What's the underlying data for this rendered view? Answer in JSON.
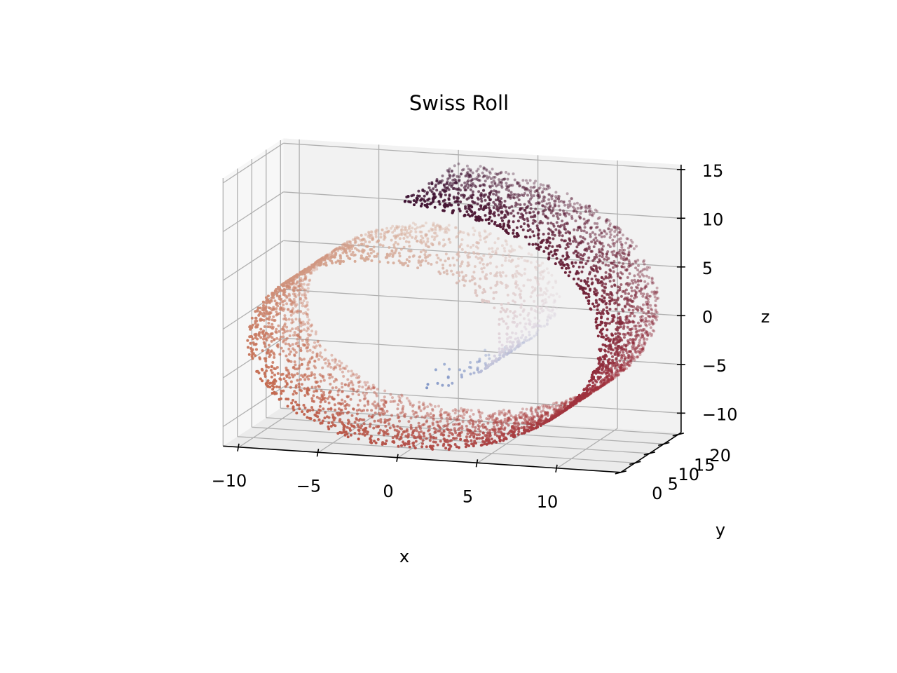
{
  "chart_data": {
    "type": "scatter",
    "projection": "3d",
    "title": "Swiss Roll",
    "xlabel": "x",
    "ylabel": "y",
    "zlabel": "z",
    "xlim": [
      -11,
      14
    ],
    "ylim": [
      0,
      21
    ],
    "zlim": [
      -12,
      15.5
    ],
    "x_ticks": [
      "−10",
      "−5",
      "0",
      "5",
      "10"
    ],
    "y_ticks": [
      "0",
      "5",
      "10",
      "15",
      "20"
    ],
    "z_ticks": [
      "−10",
      "−5",
      "0",
      "5",
      "10",
      "15"
    ],
    "grid": true,
    "colormap": "twilight_shifted",
    "color_by": "t",
    "series": [
      {
        "t_range": [
          4.71,
          14.14
        ],
        "x_formula": "t*cos(t)",
        "z_formula": "t*sin(t)",
        "y_range": [
          0,
          21
        ],
        "point_count": 5000,
        "marker_size": 2
      }
    ],
    "sample_points": [
      {
        "t": 4.71,
        "x": 0.0,
        "y": 10,
        "z": -4.7
      },
      {
        "t": 6.28,
        "x": 6.3,
        "y": 10,
        "z": 0.0
      },
      {
        "t": 7.85,
        "x": 0.0,
        "y": 10,
        "z": 7.9
      },
      {
        "t": 9.42,
        "x": -9.4,
        "y": 10,
        "z": 0.0
      },
      {
        "t": 10.99,
        "x": 0.0,
        "y": 10,
        "z": -11.0
      },
      {
        "t": 12.57,
        "x": 12.6,
        "y": 10,
        "z": 0.0
      },
      {
        "t": 14.14,
        "x": 0.0,
        "y": 10,
        "z": 14.1
      }
    ]
  }
}
